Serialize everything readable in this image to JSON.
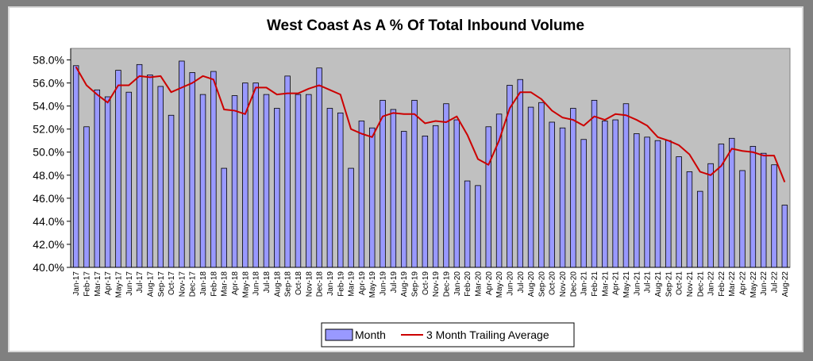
{
  "chart_data": {
    "type": "bar",
    "title": "West Coast As A %  Of Total Inbound Volume",
    "xlabel": "",
    "ylabel": "",
    "ylim": [
      40.0,
      59.0
    ],
    "yticks": [
      "40.0%",
      "42.0%",
      "44.0%",
      "46.0%",
      "48.0%",
      "50.0%",
      "52.0%",
      "54.0%",
      "56.0%",
      "58.0%"
    ],
    "ytick_values": [
      40,
      42,
      44,
      46,
      48,
      50,
      52,
      54,
      56,
      58
    ],
    "grid": false,
    "legend_position": "bottom-center",
    "categories": [
      "Jan-17",
      "Feb-17",
      "Mar-17",
      "Apr-17",
      "May-17",
      "Jun-17",
      "Jul-17",
      "Aug-17",
      "Sep-17",
      "Oct-17",
      "Nov-17",
      "Dec-17",
      "Jan-18",
      "Feb-18",
      "Mar-18",
      "Apr-18",
      "May-18",
      "Jun-18",
      "Jul-18",
      "Aug-18",
      "Sep-18",
      "Oct-18",
      "Nov-18",
      "Dec-18",
      "Jan-19",
      "Feb-19",
      "Mar-19",
      "Apr-19",
      "May-19",
      "Jun-19",
      "Jul-19",
      "Aug-19",
      "Sep-19",
      "Oct-19",
      "Nov-19",
      "Dec-19",
      "Jan-20",
      "Feb-20",
      "Mar-20",
      "Apr-20",
      "May-20",
      "Jun-20",
      "Jul-20",
      "Aug-20",
      "Sep-20",
      "Oct-20",
      "Nov-20",
      "Dec-20",
      "Jan-21",
      "Feb-21",
      "Mar-21",
      "Apr-21",
      "May-21",
      "Jun-21",
      "Jul-21",
      "Aug-21",
      "Sep-21",
      "Oct-21",
      "Nov-21",
      "Dec-21",
      "Jan-22",
      "Feb-22",
      "Mar-22",
      "Apr-22",
      "May-22",
      "Jun-22",
      "Jul-22",
      "Aug-22"
    ],
    "series": [
      {
        "name": "Month",
        "type": "bar",
        "color": "#9999ff",
        "values": [
          57.5,
          52.2,
          55.4,
          54.8,
          57.1,
          55.2,
          57.6,
          56.7,
          55.7,
          53.2,
          57.9,
          56.9,
          55.0,
          57.0,
          48.6,
          54.9,
          56.0,
          56.0,
          55.0,
          53.8,
          56.6,
          55.0,
          55.0,
          57.3,
          53.8,
          53.4,
          48.6,
          52.7,
          52.1,
          54.5,
          53.7,
          51.8,
          54.5,
          51.4,
          52.3,
          54.2,
          52.8,
          47.5,
          47.1,
          52.2,
          53.3,
          55.8,
          56.3,
          53.9,
          54.3,
          52.6,
          52.1,
          53.8,
          51.1,
          54.5,
          52.7,
          52.8,
          54.2,
          51.6,
          51.3,
          51.0,
          51.0,
          49.6,
          48.3,
          46.6,
          49.0,
          50.7,
          51.2,
          48.4,
          50.5,
          49.9,
          48.9,
          45.4
        ]
      },
      {
        "name": "3 Month Trailing Average",
        "type": "line",
        "color": "#cc0000",
        "values": [
          57.4,
          55.8,
          55.0,
          54.3,
          55.8,
          55.8,
          56.6,
          56.5,
          56.6,
          55.2,
          55.6,
          56.0,
          56.6,
          56.3,
          53.7,
          53.6,
          53.3,
          55.6,
          55.6,
          55.0,
          55.1,
          55.1,
          55.5,
          55.8,
          55.4,
          55.0,
          52.0,
          51.6,
          51.3,
          53.1,
          53.4,
          53.3,
          53.3,
          52.5,
          52.7,
          52.6,
          53.1,
          51.5,
          49.4,
          48.9,
          51.0,
          53.8,
          55.2,
          55.2,
          54.6,
          53.6,
          53.0,
          52.8,
          52.3,
          53.1,
          52.8,
          53.3,
          53.2,
          52.8,
          52.3,
          51.3,
          51.0,
          50.6,
          49.8,
          48.3,
          48.0,
          48.8,
          50.3,
          50.1,
          50.0,
          49.7,
          49.7,
          47.4
        ]
      }
    ]
  },
  "legend": {
    "items": [
      "Month",
      "3 Month Trailing Average"
    ]
  }
}
